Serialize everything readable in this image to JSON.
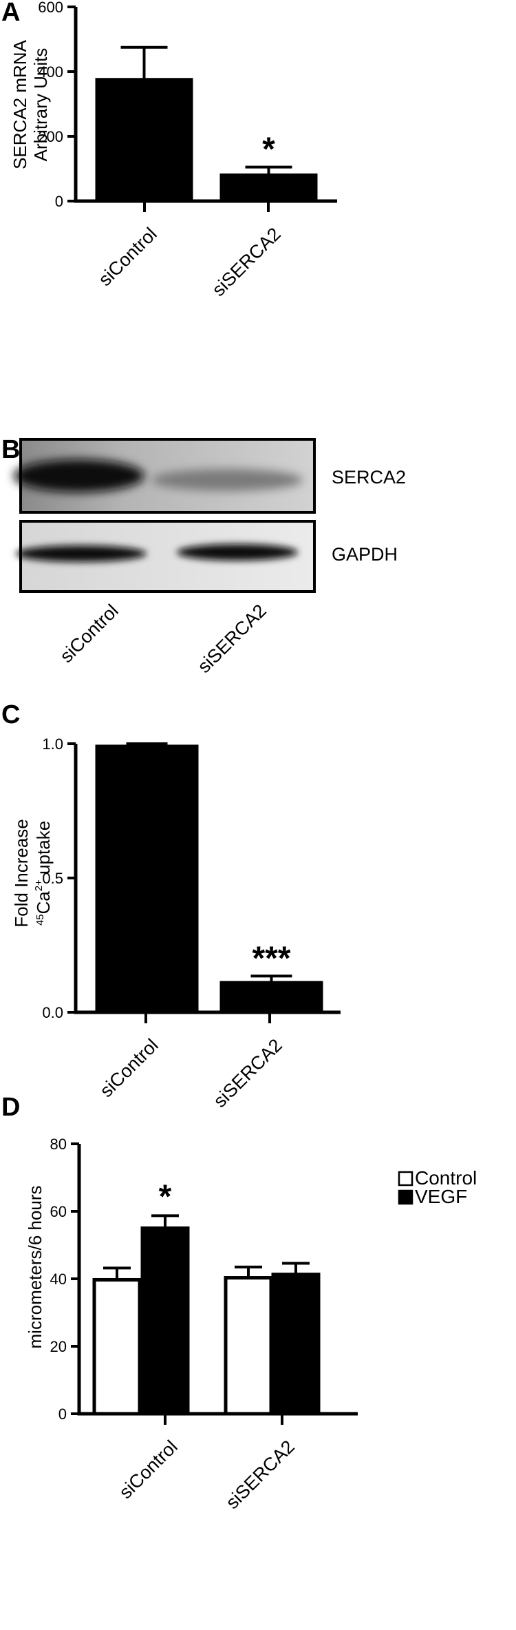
{
  "colors": {
    "bar_fill": "#000000",
    "control_fill": "#ffffff",
    "axis": "#000000"
  },
  "panel_a": {
    "letter": "A"
  },
  "panel_b": {
    "letter": "B",
    "rows": [
      {
        "label": "SERCA2"
      },
      {
        "label": "GAPDH"
      }
    ],
    "lanes": [
      "siControl",
      "siSERCA2"
    ]
  },
  "panel_c": {
    "letter": "C",
    "ylabel_ca": "Ca",
    "ylabel_mass": "45",
    "ylabel_charge": "2+",
    "ylabel_uptake": " uptake"
  },
  "panel_d": {
    "letter": "D"
  },
  "chart_data": [
    {
      "type": "bar",
      "panel": "A",
      "categories": [
        "siControl",
        "siSERCA2"
      ],
      "values": [
        375,
        80
      ],
      "errors": [
        100,
        25
      ],
      "ylabel": [
        "SERCA2 mRNA",
        "Arbitrary Units"
      ],
      "ylim": [
        0,
        600
      ],
      "yticks": [
        "0",
        "200",
        "400",
        "600"
      ],
      "annotations": [
        "",
        "*"
      ]
    },
    {
      "type": "bar",
      "panel": "C",
      "categories": [
        "siControl",
        "siSERCA2"
      ],
      "values": [
        0.99,
        0.11
      ],
      "errors": [
        0.01,
        0.025
      ],
      "ylabel": [
        "Fold Increase"
      ],
      "ylim": [
        0,
        1.0
      ],
      "yticks": [
        "0.0",
        "0.5",
        "1.0"
      ],
      "annotations": [
        "",
        "***"
      ]
    },
    {
      "type": "bar",
      "panel": "D",
      "categories": [
        "siControl",
        "siSERCA2"
      ],
      "series": [
        {
          "name": "Control",
          "values": [
            39.7,
            40.3
          ],
          "errors": [
            3.5,
            3.2
          ]
        },
        {
          "name": "VEGF",
          "values": [
            55.0,
            41.3
          ],
          "errors": [
            3.7,
            3.3
          ]
        }
      ],
      "ylabel": [
        "micrometers/6 hours"
      ],
      "ylim": [
        0,
        80
      ],
      "yticks": [
        "0",
        "20",
        "40",
        "60",
        "80"
      ],
      "legend": "top-right",
      "annotations": [
        [
          "",
          "*"
        ],
        [
          "",
          ""
        ]
      ]
    }
  ]
}
